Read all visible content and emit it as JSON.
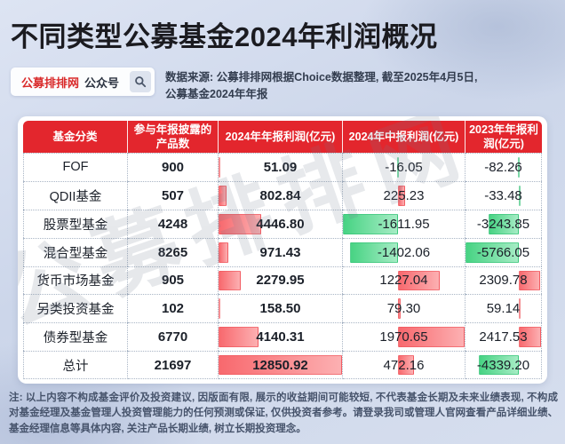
{
  "page": {
    "title": "不同类型公募基金2024年利润概况"
  },
  "header": {
    "badge": {
      "brand": "公募排排网",
      "suffix": "公众号",
      "search_icon": "magnifier"
    },
    "source_line1": "数据来源: 公募排排网根据Choice数据整理, 截至2025年4月5日,",
    "source_line2": "公募基金2024年年报"
  },
  "colors": {
    "header_bg": "#e3262d",
    "brand_red": "#d92a2a",
    "positive_bar": [
      "#f8696e",
      "#fcb0b2"
    ],
    "negative_bar": [
      "#47d383",
      "#a6ecc5"
    ]
  },
  "watermark_text": "公募排排网",
  "table": {
    "columns": [
      "基金分类",
      "参与年报披露的产品数",
      "2024年年报利润(亿元)",
      "2024年中报利润(亿元)",
      "2023年年报利润(亿元)"
    ],
    "rows": [
      [
        "FOF",
        "900",
        "51.09",
        "-16.05",
        "-82.26"
      ],
      [
        "QDII基金",
        "507",
        "802.84",
        "225.23",
        "-33.48"
      ],
      [
        "股票型基金",
        "4248",
        "4446.80",
        "-1611.95",
        "-3243.85"
      ],
      [
        "混合型基金",
        "8265",
        "971.43",
        "-1402.06",
        "-5766.05"
      ],
      [
        "货币市场基金",
        "905",
        "2279.95",
        "1227.04",
        "2309.78"
      ],
      [
        "另类投资基金",
        "102",
        "158.50",
        "79.30",
        "59.14"
      ],
      [
        "债券型基金",
        "6770",
        "4140.31",
        "1970.65",
        "2417.53"
      ],
      [
        "总计",
        "21697",
        "12850.92",
        "472.16",
        "-4339.20"
      ]
    ],
    "bar_columns": {
      "2": {
        "min": 0,
        "max": 12850.92
      },
      "3": {
        "min": -1611.95,
        "max": 1970.65
      },
      "4": {
        "min": -5766.05,
        "max": 2417.53
      }
    },
    "bold_columns": [
      1,
      2
    ]
  },
  "chart_data": {
    "type": "table",
    "title": "不同类型公募基金2024年利润概况",
    "categories": [
      "FOF",
      "QDII基金",
      "股票型基金",
      "混合型基金",
      "货币市场基金",
      "另类投资基金",
      "债券型基金",
      "总计"
    ],
    "series": [
      {
        "name": "参与年报披露的产品数",
        "values": [
          900,
          507,
          4248,
          8265,
          905,
          102,
          6770,
          21697
        ]
      },
      {
        "name": "2024年年报利润(亿元)",
        "values": [
          51.09,
          802.84,
          4446.8,
          971.43,
          2279.95,
          158.5,
          4140.31,
          12850.92
        ]
      },
      {
        "name": "2024年中报利润(亿元)",
        "values": [
          -16.05,
          225.23,
          -1611.95,
          -1402.06,
          1227.04,
          79.3,
          1970.65,
          472.16
        ]
      },
      {
        "name": "2023年年报利润(亿元)",
        "values": [
          -82.26,
          -33.48,
          -3243.85,
          -5766.05,
          2309.78,
          59.14,
          2417.53,
          -4339.2
        ]
      }
    ],
    "layout": {
      "data_bars": "excel-style, red=positive, green=negative, axis proportional per column"
    }
  },
  "footer": {
    "note": "注: 以上内容不构成基金评价及投资建议, 因版面有限, 展示的收益期间可能较短, 不代表基金长期及未来业绩表现, 不构成对基金经理及基金管理人投资管理能力的任何预测或保证, 仅供投资者参考。请登录我司或管理人官网查看产品详细业绩、基金经理信息等具体内容, 关注产品长期业绩, 树立长期投资理念。"
  }
}
